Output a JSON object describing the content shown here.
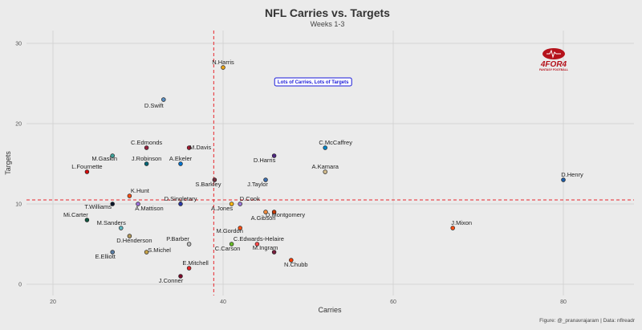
{
  "chart_data": {
    "type": "scatter",
    "title": "NFL Carries vs. Targets",
    "subtitle": "Weeks 1-3",
    "xlabel": "Carries",
    "ylabel": "Targets",
    "xlim": [
      16,
      88
    ],
    "ylim": [
      -1.5,
      31.5
    ],
    "xticks": [
      20,
      40,
      60,
      80
    ],
    "yticks": [
      0,
      10,
      20,
      30
    ],
    "grid": true,
    "mean_lines": {
      "x": 38.9,
      "y": 10.5,
      "color": "#e8262b"
    },
    "annotation": {
      "text": "Lots of Carries, Lots of Targets",
      "x": 52,
      "y": 25
    },
    "caption": "Figure: @_pranavrajaram | Data: nflreadr",
    "logo": {
      "text": "4FOR4",
      "subtext": "FANTASY FOOTBALL",
      "color": "#b5121b"
    },
    "points": [
      {
        "name": "N.Harris",
        "x": 40,
        "y": 27,
        "color": "#e8a317"
      },
      {
        "name": "D.Swift",
        "x": 33,
        "y": 23,
        "color": "#5a8fc2"
      },
      {
        "name": "C.Edmonds",
        "x": 31,
        "y": 17,
        "color": "#97233f"
      },
      {
        "name": "M.Davis",
        "x": 36,
        "y": 17,
        "color": "#a71930"
      },
      {
        "name": "M.Gaskin",
        "x": 27,
        "y": 16,
        "color": "#3fa7a0"
      },
      {
        "name": "D.Harris",
        "x": 46,
        "y": 16,
        "color": "#4f2683"
      },
      {
        "name": "C.McCaffrey",
        "x": 52,
        "y": 17,
        "color": "#0085ca"
      },
      {
        "name": "J.Robinson",
        "x": 31,
        "y": 15,
        "color": "#006778"
      },
      {
        "name": "A.Ekeler",
        "x": 35,
        "y": 15,
        "color": "#0073cf"
      },
      {
        "name": "L.Fournette",
        "x": 24,
        "y": 14,
        "color": "#d50a0a"
      },
      {
        "name": "A.Kamara",
        "x": 52,
        "y": 14,
        "color": "#d3bc8d"
      },
      {
        "name": "S.Barkley",
        "x": 39,
        "y": 13,
        "color": "#773141"
      },
      {
        "name": "J.Taylor",
        "x": 45,
        "y": 13,
        "color": "#3d6fb0"
      },
      {
        "name": "D.Henry",
        "x": 80,
        "y": 13,
        "color": "#1f5ea8"
      },
      {
        "name": "K.Hunt",
        "x": 29,
        "y": 11,
        "color": "#fb4f14"
      },
      {
        "name": "T.Williams",
        "x": 27,
        "y": 10,
        "color": "#0b162a"
      },
      {
        "name": "A.Mattison",
        "x": 30,
        "y": 10,
        "color": "#9b6fd6"
      },
      {
        "name": "D.Singletary",
        "x": 35,
        "y": 10,
        "color": "#2a3aa8"
      },
      {
        "name": "A.Jones",
        "x": 41,
        "y": 10,
        "color": "#ffb612"
      },
      {
        "name": "D.Cook",
        "x": 42,
        "y": 10,
        "color": "#9d7ad8"
      },
      {
        "name": "D.Montgomery",
        "x": 46,
        "y": 9,
        "color": "#c83803"
      },
      {
        "name": "A.Gibson",
        "x": 45,
        "y": 9,
        "color": "#f08a3c"
      },
      {
        "name": "Mi.Carter",
        "x": 24,
        "y": 8,
        "color": "#125740"
      },
      {
        "name": "M.Sanders",
        "x": 28,
        "y": 7,
        "color": "#5fb8c2"
      },
      {
        "name": "M.Gordon",
        "x": 42,
        "y": 7,
        "color": "#fb4f14"
      },
      {
        "name": "J.Mixon",
        "x": 67,
        "y": 7,
        "color": "#fb4f14"
      },
      {
        "name": "D.Henderson",
        "x": 29,
        "y": 6,
        "color": "#b3995d"
      },
      {
        "name": "P.Barber",
        "x": 36,
        "y": 5,
        "color": "#bbbbbb"
      },
      {
        "name": "C.Carson",
        "x": 41,
        "y": 5,
        "color": "#69be28"
      },
      {
        "name": "C.Edwards-Helaire",
        "x": 44,
        "y": 5,
        "color": "#ff4a4a"
      },
      {
        "name": "E.Elliott",
        "x": 27,
        "y": 4,
        "color": "#5b7fa6"
      },
      {
        "name": "S.Michel",
        "x": 31,
        "y": 4,
        "color": "#c8a44a"
      },
      {
        "name": "M.Ingram",
        "x": 46,
        "y": 4,
        "color": "#7a1f3d"
      },
      {
        "name": "N.Chubb",
        "x": 48,
        "y": 3,
        "color": "#ff3c00"
      },
      {
        "name": "E.Mitchell",
        "x": 36,
        "y": 2,
        "color": "#e8262b"
      },
      {
        "name": "J.Conner",
        "x": 35,
        "y": 1,
        "color": "#7b0a2a"
      }
    ]
  }
}
